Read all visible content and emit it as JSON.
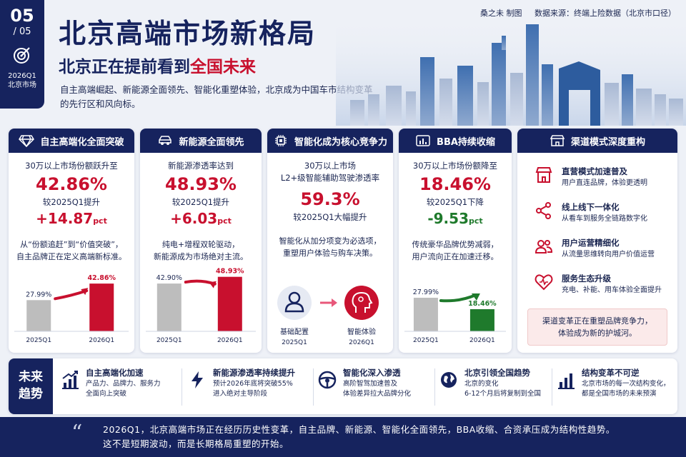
{
  "badge": {
    "page_num": "05",
    "page_total": "/ 05",
    "period": "2026Q1",
    "market": "北京市场"
  },
  "header": {
    "title": "北京高端市场新格局",
    "subtitle_prefix": "北京正在提前看到",
    "subtitle_highlight": "全国未来",
    "description": "自主高端崛起、新能源全面领先、智能化重塑体验，北京成为中国车市结构变革的先行区和风向标。",
    "author": "桑之未  制图",
    "source": "数据来源：终端上险数据（北京市口径）"
  },
  "cards": {
    "brand": {
      "title": "自主高端化全面突破",
      "icon": "diamond-icon",
      "line1": "30万以上市场份额跃升至",
      "value": "42.86%",
      "line2": "较2025Q1提升",
      "delta": "+14.87",
      "unit": "pct",
      "note1": "从“份额追赶”到“价值突破”，",
      "note2": "自主品牌正在定义高端新标准。",
      "bar_labels": [
        "27.99%",
        "42.86%"
      ],
      "bar_x": [
        "2025Q1",
        "2026Q1"
      ]
    },
    "nev": {
      "title": "新能源全面领先",
      "icon": "car-icon",
      "line1": "新能源渗透率达到",
      "value": "48.93%",
      "line2": "较2025Q1提升",
      "delta": "+6.03",
      "unit": "pct",
      "note1": "纯电+增程双轮驱动，",
      "note2": "新能源成为市场绝对主流。",
      "bar_labels": [
        "42.90%",
        "48.93%"
      ],
      "bar_x": [
        "2025Q1",
        "2026Q1"
      ]
    },
    "smart": {
      "title": "智能化成为核心竞争力",
      "icon": "chip-icon",
      "line1": "30万以上市场",
      "line1b": "L2+级智能辅助驾驶渗透率",
      "value": "59.3%",
      "line2": "较2025Q1大幅提升",
      "note1": "智能化从加分项变为必选项，",
      "note2": "重塑用户体验与购车决策。",
      "left_label": "基础配置",
      "right_label": "智能体验",
      "left_period": "2025Q1",
      "right_period": "2026Q1"
    },
    "bba": {
      "title": "BBA持续收缩",
      "icon": "bar-chart-icon",
      "line1": "30万以上市场份额降至",
      "value": "18.46%",
      "line2": "较2025Q1下降",
      "delta": "-9.53",
      "unit": "pct",
      "note1": "传统豪华品牌优势减弱，",
      "note2": "用户流向正在加速迁移。",
      "bar_labels": [
        "27.99%",
        "18.46%"
      ],
      "bar_x": [
        "2025Q1",
        "2026Q1"
      ]
    },
    "channel": {
      "title": "渠道模式深度重构",
      "icon": "store-icon",
      "items": [
        {
          "title": "直营模式加速普及",
          "desc": "用户直连品牌，体验更透明"
        },
        {
          "title": "线上线下一体化",
          "desc": "从看车到服务全链路数字化"
        },
        {
          "title": "用户运营精细化",
          "desc": "从流量思维转向用户价值运营"
        },
        {
          "title": "服务生态升级",
          "desc": "充电、补能、用车体验全面提升"
        }
      ],
      "box1": "渠道变革正在重塑品牌竞争力，",
      "box2": "体验成为新的护城河。"
    }
  },
  "chart_data": [
    {
      "type": "bar",
      "title": "",
      "categories": [
        "2025Q1",
        "2026Q1"
      ],
      "values": [
        27.99,
        42.86
      ],
      "ylim": [
        0,
        50
      ]
    },
    {
      "type": "bar",
      "title": "",
      "categories": [
        "2025Q1",
        "2026Q1"
      ],
      "values": [
        42.9,
        48.93
      ],
      "ylim": [
        0,
        50
      ]
    },
    {
      "type": "bar",
      "title": "",
      "categories": [
        "2025Q1",
        "2026Q1"
      ],
      "values": [
        27.99,
        18.46
      ],
      "ylim": [
        0,
        50
      ]
    }
  ],
  "trends": {
    "label1": "未来",
    "label2": "趋势",
    "items": [
      {
        "title": "自主高端化加速",
        "desc1": "产品力、品牌力、服务力",
        "desc2": "全面向上突破"
      },
      {
        "title": "新能源渗透率持续提升",
        "desc1": "预计2026年底将突破55%",
        "desc2": "进入绝对主导阶段"
      },
      {
        "title": "智能化深入渗透",
        "desc1": "高阶智驾加速普及",
        "desc2": "体验差异拉大品牌分化"
      },
      {
        "title": "北京引领全国趋势",
        "desc1": "北京的变化",
        "desc2": "6-12个月后将复制到全国"
      },
      {
        "title": "结构变革不可逆",
        "desc1": "北京市场的每一次结构变化，",
        "desc2": "都是全国市场的未来预演"
      }
    ]
  },
  "footer": {
    "line1": "2026Q1，北京高端市场正在经历历史性变革，自主品牌、新能源、智能化全面领先，BBA收缩、合资承压成为结构性趋势。",
    "line2": "这不是短期波动，而是长期格局重塑的开始。"
  },
  "colors": {
    "navy": "#16235e",
    "red": "#c8102e",
    "green": "#1f7a2c",
    "grey_bar": "#bdbdbd"
  }
}
